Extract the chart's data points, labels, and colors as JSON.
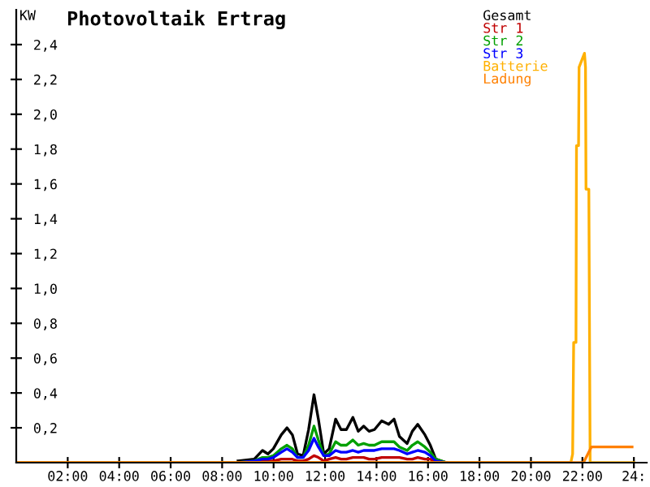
{
  "chart_data": {
    "type": "line",
    "title": "Photovoltaik Ertrag",
    "ylabel": "KW",
    "xlim": [
      0,
      24.5
    ],
    "ylim": [
      0,
      2.6
    ],
    "xticks": [
      {
        "value": 2,
        "label": "02:00"
      },
      {
        "value": 4,
        "label": "04:00"
      },
      {
        "value": 6,
        "label": "06:00"
      },
      {
        "value": 8,
        "label": "08:00"
      },
      {
        "value": 10,
        "label": "10:00"
      },
      {
        "value": 12,
        "label": "12:00"
      },
      {
        "value": 14,
        "label": "14:00"
      },
      {
        "value": 16,
        "label": "16:00"
      },
      {
        "value": 18,
        "label": "18:00"
      },
      {
        "value": 20,
        "label": "20:00"
      },
      {
        "value": 22,
        "label": "22:00"
      },
      {
        "value": 24,
        "label": "24:"
      }
    ],
    "yticks": [
      {
        "value": 0.2,
        "label": "0,2"
      },
      {
        "value": 0.4,
        "label": "0,4"
      },
      {
        "value": 0.6,
        "label": "0,6"
      },
      {
        "value": 0.8,
        "label": "0,8"
      },
      {
        "value": 1.0,
        "label": "1,0"
      },
      {
        "value": 1.2,
        "label": "1,2"
      },
      {
        "value": 1.4,
        "label": "1,4"
      },
      {
        "value": 1.6,
        "label": "1,6"
      },
      {
        "value": 1.8,
        "label": "1,8"
      },
      {
        "value": 2.0,
        "label": "2,0"
      },
      {
        "value": 2.2,
        "label": "2,2"
      },
      {
        "value": 2.4,
        "label": "2,4"
      }
    ],
    "x": [
      8.62,
      9.25,
      9.57,
      9.78,
      9.99,
      10.3,
      10.52,
      10.73,
      10.93,
      11.15,
      11.36,
      11.57,
      11.74,
      11.95,
      12.16,
      12.41,
      12.62,
      12.83,
      13.08,
      13.29,
      13.5,
      13.71,
      13.92,
      14.2,
      14.47,
      14.68,
      14.89,
      15.19,
      15.39,
      15.6,
      15.88,
      16.09,
      16.3,
      16.72
    ],
    "legend": "top right",
    "grid": false,
    "series": [
      {
        "name": "Gesamt",
        "color": "#000000",
        "values": [
          0.01,
          0.02,
          0.07,
          0.05,
          0.08,
          0.16,
          0.2,
          0.16,
          0.05,
          0.04,
          0.19,
          0.39,
          0.25,
          0.05,
          0.08,
          0.25,
          0.19,
          0.19,
          0.26,
          0.18,
          0.21,
          0.18,
          0.19,
          0.24,
          0.22,
          0.25,
          0.15,
          0.11,
          0.18,
          0.22,
          0.16,
          0.1,
          0.02,
          0.0
        ]
      },
      {
        "name": "Str 1",
        "color": "#c00000",
        "values": [
          0,
          0,
          0.01,
          0.01,
          0.01,
          0.02,
          0.02,
          0.02,
          0.01,
          0.01,
          0.02,
          0.04,
          0.03,
          0.01,
          0.02,
          0.03,
          0.02,
          0.02,
          0.03,
          0.03,
          0.03,
          0.02,
          0.02,
          0.03,
          0.03,
          0.03,
          0.03,
          0.02,
          0.02,
          0.03,
          0.02,
          0.02,
          0,
          0
        ]
      },
      {
        "name": "Str 2",
        "color": "#00a000",
        "values": [
          0,
          0.01,
          0.03,
          0.03,
          0.04,
          0.08,
          0.1,
          0.08,
          0.03,
          0.03,
          0.1,
          0.21,
          0.13,
          0.04,
          0.05,
          0.12,
          0.1,
          0.1,
          0.13,
          0.1,
          0.11,
          0.1,
          0.1,
          0.12,
          0.12,
          0.12,
          0.09,
          0.07,
          0.1,
          0.12,
          0.09,
          0.06,
          0.02,
          0
        ]
      },
      {
        "name": "Str 3",
        "color": "#0000ff",
        "values": [
          0,
          0.01,
          0.02,
          0.02,
          0.03,
          0.06,
          0.08,
          0.06,
          0.03,
          0.03,
          0.07,
          0.14,
          0.09,
          0.04,
          0.04,
          0.07,
          0.06,
          0.06,
          0.07,
          0.06,
          0.07,
          0.07,
          0.07,
          0.08,
          0.08,
          0.08,
          0.07,
          0.05,
          0.06,
          0.07,
          0.06,
          0.04,
          0.01,
          0
        ]
      },
      {
        "name": "Batterie",
        "color": "#ffb000",
        "x": [
          0,
          21.55,
          21.62,
          21.66,
          21.75,
          21.77,
          21.85,
          21.87,
          22.08,
          22.12,
          22.14,
          22.25,
          22.3,
          24
        ],
        "values": [
          0,
          0,
          0.05,
          0.69,
          0.69,
          1.82,
          1.82,
          2.27,
          2.35,
          2.27,
          1.57,
          1.57,
          0,
          0
        ]
      },
      {
        "name": "Ladung",
        "color": "#ff8000",
        "x": [
          0,
          22.04,
          22.35,
          23.93
        ],
        "values": [
          0,
          0,
          0.09,
          0.09
        ]
      }
    ]
  }
}
